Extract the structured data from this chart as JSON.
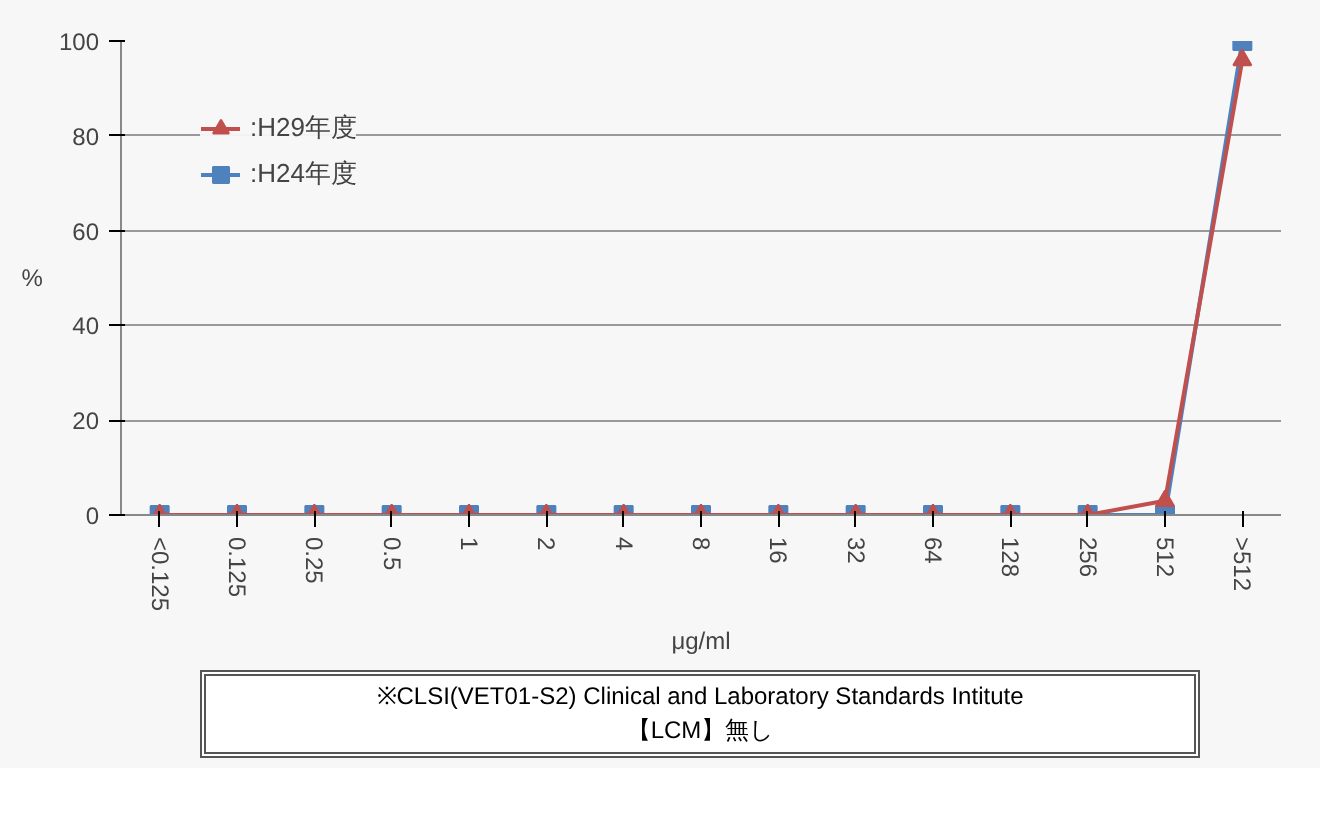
{
  "chart_data": {
    "type": "line",
    "ylabel": "%",
    "xlabel": "μg/ml",
    "categories": [
      "<0.125",
      "0.125",
      "0.25",
      "0.5",
      "1",
      "2",
      "4",
      "8",
      "16",
      "32",
      "64",
      "128",
      "256",
      "512",
      ">512"
    ],
    "series": [
      {
        "name": ":H29年度",
        "color": "#c0504d",
        "marker": "triangle",
        "values": [
          0,
          0,
          0,
          0,
          0,
          0,
          0,
          0,
          0,
          0,
          0,
          0,
          0,
          3,
          96
        ]
      },
      {
        "name": ":H24年度",
        "color": "#4f81bd",
        "marker": "square",
        "values": [
          0,
          0,
          0,
          0,
          0,
          0,
          0,
          0,
          0,
          0,
          0,
          0,
          0,
          0,
          100
        ]
      }
    ],
    "ylim": [
      0,
      100
    ],
    "yticks": [
      0,
      20,
      40,
      60,
      80,
      100
    ],
    "grid": "y",
    "legend": "top left",
    "annotations": [
      "※CLSI(VET01-S2) Clinical and Laboratory Standards Intitute\n【LCM】無し"
    ]
  }
}
